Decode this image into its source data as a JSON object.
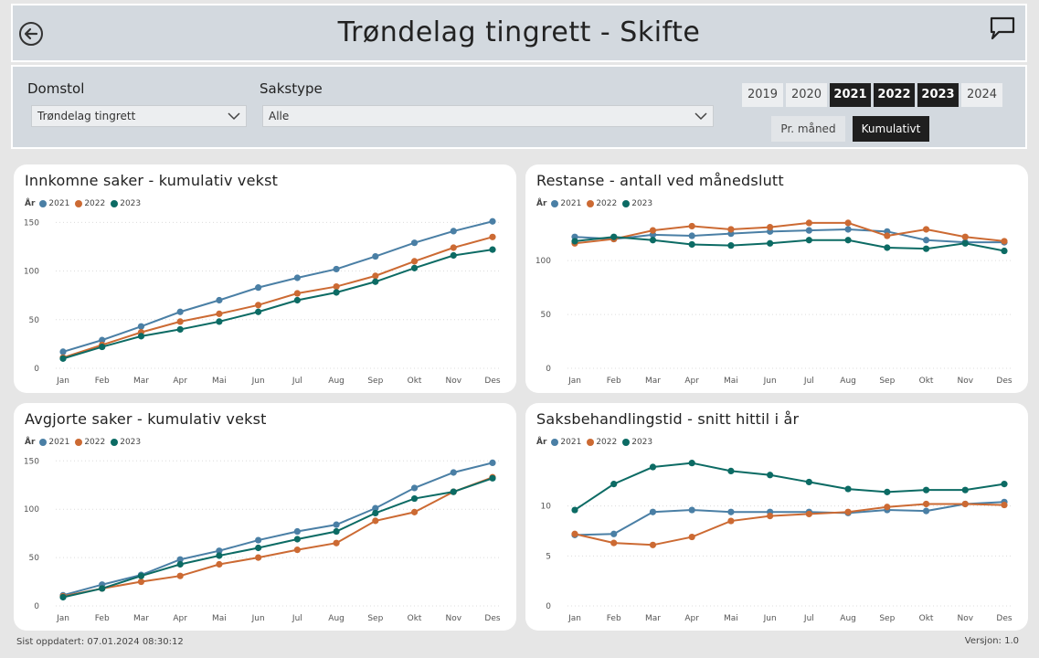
{
  "header": {
    "title": "Trøndelag tingrett - Skifte",
    "back_icon": "back-arrow-icon",
    "chat_icon": "chat-icon"
  },
  "filters": {
    "domstol_label": "Domstol",
    "domstol_value": "Trøndelag tingrett",
    "sakstype_label": "Sakstype",
    "sakstype_value": "Alle",
    "years": [
      {
        "label": "2019",
        "selected": false
      },
      {
        "label": "2020",
        "selected": false
      },
      {
        "label": "2021",
        "selected": true
      },
      {
        "label": "2022",
        "selected": true
      },
      {
        "label": "2023",
        "selected": true
      },
      {
        "label": "2024",
        "selected": false
      }
    ],
    "modes": [
      {
        "label": "Pr. måned",
        "selected": false
      },
      {
        "label": "Kumulativt",
        "selected": true
      }
    ]
  },
  "legend": {
    "title": "År",
    "series_colors": {
      "2021": "#4a7fa5",
      "2022": "#cc6a33",
      "2023": "#0c6b64"
    }
  },
  "chart_data": [
    {
      "type": "line",
      "title": "Innkomne saker - kumulativ vekst",
      "categories": [
        "Jan",
        "Feb",
        "Mar",
        "Apr",
        "Mai",
        "Jun",
        "Jul",
        "Aug",
        "Sep",
        "Okt",
        "Nov",
        "Des"
      ],
      "ylim": [
        0,
        155
      ],
      "yticks": [
        0,
        50,
        100,
        150
      ],
      "series": [
        {
          "name": "2021",
          "values": [
            17,
            29,
            43,
            58,
            70,
            83,
            93,
            102,
            115,
            129,
            141,
            151
          ]
        },
        {
          "name": "2022",
          "values": [
            11,
            24,
            37,
            48,
            56,
            65,
            77,
            84,
            95,
            110,
            124,
            135
          ]
        },
        {
          "name": "2023",
          "values": [
            10,
            22,
            33,
            40,
            48,
            58,
            70,
            78,
            89,
            103,
            116,
            122
          ]
        }
      ]
    },
    {
      "type": "line",
      "title": "Restanse - antall ved månedslutt",
      "categories": [
        "Jan",
        "Feb",
        "Mar",
        "Apr",
        "Mai",
        "Jun",
        "Jul",
        "Aug",
        "Sep",
        "Okt",
        "Nov",
        "Des"
      ],
      "ylim": [
        0,
        140
      ],
      "yticks": [
        0,
        50,
        100
      ],
      "series": [
        {
          "name": "2021",
          "values": [
            122,
            120,
            124,
            123,
            125,
            127,
            128,
            129,
            127,
            119,
            117,
            117
          ]
        },
        {
          "name": "2022",
          "values": [
            116,
            120,
            128,
            132,
            129,
            131,
            135,
            135,
            123,
            129,
            122,
            118
          ]
        },
        {
          "name": "2023",
          "values": [
            118,
            122,
            119,
            115,
            114,
            116,
            119,
            119,
            112,
            111,
            116,
            109
          ]
        }
      ]
    },
    {
      "type": "line",
      "title": "Avgjorte saker - kumulativ vekst",
      "categories": [
        "Jan",
        "Feb",
        "Mar",
        "Apr",
        "Mai",
        "Jun",
        "Jul",
        "Aug",
        "Sep",
        "Okt",
        "Nov",
        "Des"
      ],
      "ylim": [
        0,
        155
      ],
      "yticks": [
        0,
        50,
        100,
        150
      ],
      "series": [
        {
          "name": "2021",
          "values": [
            11,
            22,
            32,
            48,
            57,
            68,
            77,
            84,
            101,
            122,
            138,
            148
          ]
        },
        {
          "name": "2022",
          "values": [
            10,
            18,
            25,
            31,
            43,
            50,
            58,
            65,
            88,
            97,
            118,
            133
          ]
        },
        {
          "name": "2023",
          "values": [
            9,
            18,
            31,
            43,
            52,
            60,
            69,
            77,
            96,
            111,
            118,
            132
          ]
        }
      ]
    },
    {
      "type": "line",
      "title": "Saksbehandlingstid - snitt hittil i år",
      "categories": [
        "Jan",
        "Feb",
        "Mar",
        "Apr",
        "Mai",
        "Jun",
        "Jul",
        "Aug",
        "Sep",
        "Okt",
        "Nov",
        "Des"
      ],
      "ylim": [
        0,
        15
      ],
      "yticks": [
        0,
        5,
        10
      ],
      "series": [
        {
          "name": "2021",
          "values": [
            7.1,
            7.2,
            9.4,
            9.6,
            9.4,
            9.4,
            9.4,
            9.3,
            9.6,
            9.5,
            10.2,
            10.4
          ]
        },
        {
          "name": "2022",
          "values": [
            7.2,
            6.3,
            6.1,
            6.9,
            8.5,
            9.0,
            9.2,
            9.4,
            9.9,
            10.2,
            10.2,
            10.1
          ]
        },
        {
          "name": "2023",
          "values": [
            9.6,
            12.2,
            13.9,
            14.3,
            13.5,
            13.1,
            12.4,
            11.7,
            11.4,
            11.6,
            11.6,
            12.2
          ]
        }
      ]
    }
  ],
  "footer": {
    "updated": "Sist oppdatert: 07.01.2024 08:30:12",
    "version": "Versjon: 1.0"
  }
}
